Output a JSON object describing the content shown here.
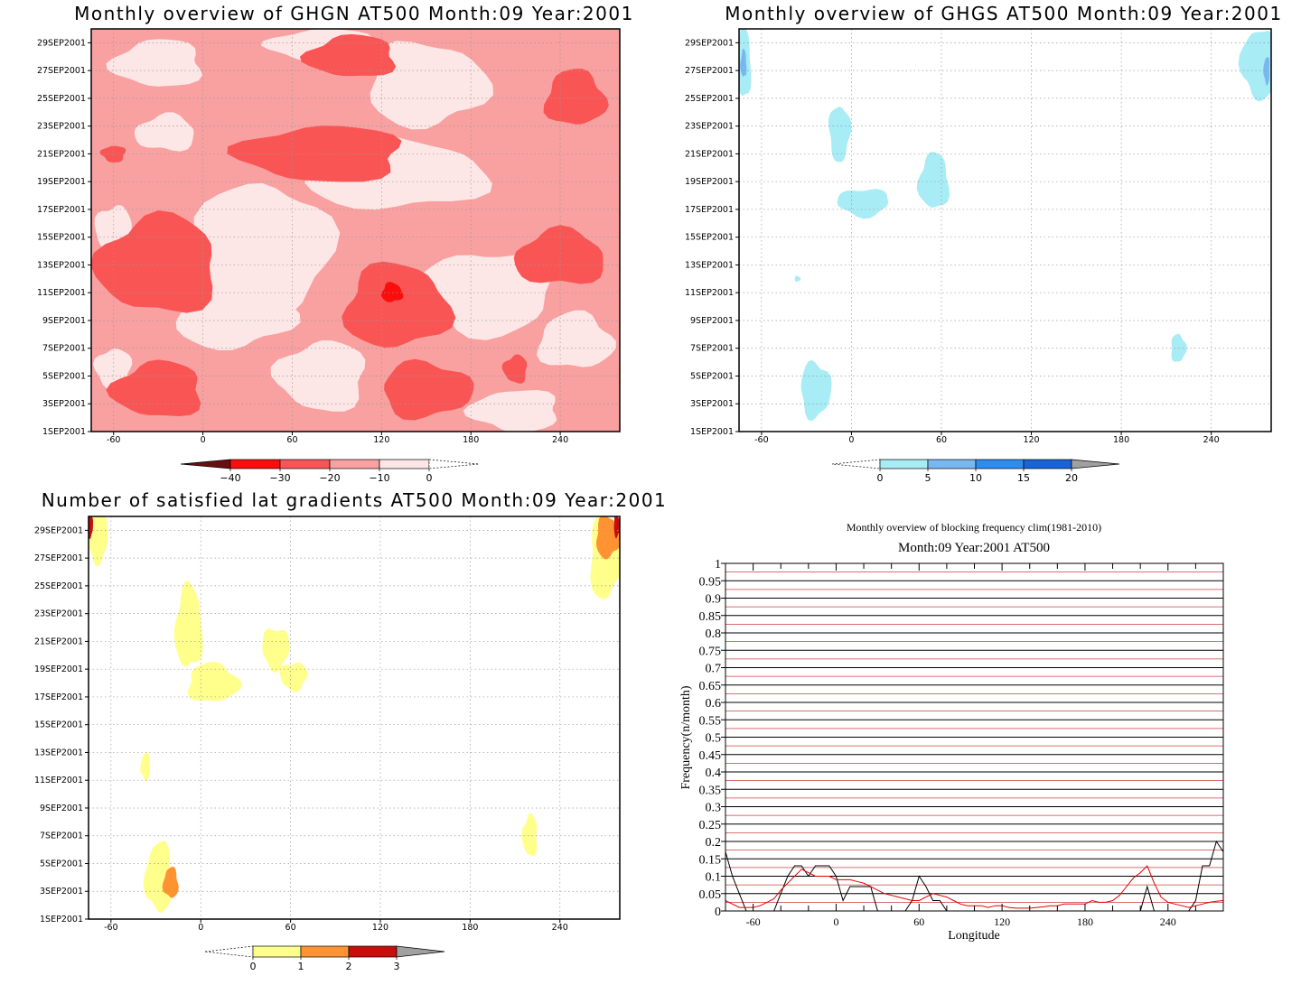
{
  "chart_data": [
    {
      "id": "ghgn",
      "type": "heatmap",
      "title": "Monthly overview of GHGN AT500 Month:09 Year:2001",
      "x_ticks": [
        -60,
        0,
        60,
        120,
        180,
        240
      ],
      "x_range": [
        -75,
        280
      ],
      "y_ticks": [
        "1SEP2001",
        "3SEP2001",
        "5SEP2001",
        "7SEP2001",
        "9SEP2001",
        "11SEP2001",
        "13SEP2001",
        "15SEP2001",
        "17SEP2001",
        "19SEP2001",
        "21SEP2001",
        "23SEP2001",
        "25SEP2001",
        "27SEP2001",
        "29SEP2001"
      ],
      "y_range": [
        1,
        30
      ],
      "background_level": "-20 to -10",
      "background_color": "#f9a0a0",
      "colorbar": {
        "labels": [
          "-40",
          "-30",
          "-20",
          "-10",
          "0"
        ],
        "colors": [
          "#fc0d0d",
          "#f95555",
          "#f9a0a0",
          "#fde6e6"
        ],
        "low_extend_color": "#6a0f0f",
        "high_extend_color": "#ffffff"
      },
      "regions": [
        {
          "level": "0 to -10",
          "color": "#fde6e6",
          "center": [
            -30,
            27.5
          ],
          "radius": [
            30,
            1.7
          ]
        },
        {
          "level": "0 to -10",
          "color": "#fde6e6",
          "center": [
            80,
            28.8
          ],
          "radius": [
            35,
            1.2
          ]
        },
        {
          "level": "0 to -10",
          "color": "#fde6e6",
          "center": [
            150,
            26
          ],
          "radius": [
            40,
            3
          ]
        },
        {
          "level": "0 to -10",
          "color": "#fde6e6",
          "center": [
            -25,
            22.5
          ],
          "radius": [
            20,
            1.3
          ]
        },
        {
          "level": "0 to -10",
          "color": "#fde6e6",
          "center": [
            130,
            19.5
          ],
          "radius": [
            60,
            2.5
          ]
        },
        {
          "level": "0 to -10",
          "color": "#fde6e6",
          "center": [
            40,
            14
          ],
          "radius": [
            45,
            5
          ]
        },
        {
          "level": "0 to -10",
          "color": "#fde6e6",
          "center": [
            -60,
            15.5
          ],
          "radius": [
            12,
            1.8
          ]
        },
        {
          "level": "0 to -10",
          "color": "#fde6e6",
          "center": [
            20,
            9.5
          ],
          "radius": [
            40,
            2.5
          ]
        },
        {
          "level": "0 to -10",
          "color": "#fde6e6",
          "center": [
            190,
            11
          ],
          "radius": [
            45,
            3
          ]
        },
        {
          "level": "0 to -10",
          "color": "#fde6e6",
          "center": [
            250,
            7.5
          ],
          "radius": [
            25,
            2
          ]
        },
        {
          "level": "0 to -10",
          "color": "#fde6e6",
          "center": [
            80,
            5
          ],
          "radius": [
            30,
            2.5
          ]
        },
        {
          "level": "0 to -10",
          "color": "#fde6e6",
          "center": [
            -60,
            5.5
          ],
          "radius": [
            12,
            1.5
          ]
        },
        {
          "level": "0 to -10",
          "color": "#fde6e6",
          "center": [
            210,
            2.5
          ],
          "radius": [
            30,
            1.5
          ]
        },
        {
          "level": "-20 to -30",
          "color": "#f95555",
          "center": [
            100,
            28
          ],
          "radius": [
            30,
            1.5
          ]
        },
        {
          "level": "-20 to -30",
          "color": "#f95555",
          "center": [
            250,
            25
          ],
          "radius": [
            20,
            2
          ]
        },
        {
          "level": "-20 to -30",
          "color": "#f95555",
          "center": [
            80,
            21
          ],
          "radius": [
            55,
            2
          ]
        },
        {
          "level": "-20 to -30",
          "color": "#f95555",
          "center": [
            -60,
            21
          ],
          "radius": [
            8,
            0.6
          ]
        },
        {
          "level": "-20 to -30",
          "color": "#f95555",
          "center": [
            -30,
            13
          ],
          "radius": [
            40,
            3.5
          ]
        },
        {
          "level": "-20 to -30",
          "color": "#f95555",
          "center": [
            130,
            10
          ],
          "radius": [
            35,
            3
          ]
        },
        {
          "level": "-20 to -30",
          "color": "#f95555",
          "center": [
            240,
            13.5
          ],
          "radius": [
            30,
            2
          ]
        },
        {
          "level": "-20 to -30",
          "color": "#f95555",
          "center": [
            -30,
            4
          ],
          "radius": [
            30,
            2
          ]
        },
        {
          "level": "-20 to -30",
          "color": "#f95555",
          "center": [
            150,
            4
          ],
          "radius": [
            30,
            2
          ]
        },
        {
          "level": "-20 to -30",
          "color": "#f95555",
          "center": [
            210,
            5.5
          ],
          "radius": [
            8,
            1
          ]
        },
        {
          "level": "-30 to -40",
          "color": "#fc0d0d",
          "center": [
            127,
            11
          ],
          "radius": [
            7,
            0.7
          ]
        }
      ]
    },
    {
      "id": "ghgs",
      "type": "heatmap",
      "title": "Monthly overview of GHGS AT500 Month:09 Year:2001",
      "x_ticks": [
        -60,
        0,
        60,
        120,
        180,
        240
      ],
      "x_range": [
        -75,
        280
      ],
      "y_ticks": [
        "1SEP2001",
        "3SEP2001",
        "5SEP2001",
        "7SEP2001",
        "9SEP2001",
        "11SEP2001",
        "13SEP2001",
        "15SEP2001",
        "17SEP2001",
        "19SEP2001",
        "21SEP2001",
        "23SEP2001",
        "25SEP2001",
        "27SEP2001",
        "29SEP2001"
      ],
      "y_range": [
        1,
        30
      ],
      "colorbar": {
        "labels": [
          "0",
          "5",
          "10",
          "15",
          "20"
        ],
        "colors": [
          "#a8ecf5",
          "#78b8f0",
          "#2d8cf0",
          "#1664d8"
        ],
        "low_extend_color": "#ffffff",
        "high_extend_color": "#a0a0a0"
      },
      "regions": [
        {
          "level": "0 to 5",
          "color": "#a8ecf5",
          "center": [
            -72,
            27.5
          ],
          "radius": [
            5,
            2.5
          ]
        },
        {
          "level": "5 to 10",
          "color": "#78b8f0",
          "center": [
            -72,
            27.5
          ],
          "radius": [
            2,
            1
          ]
        },
        {
          "level": "0 to 5",
          "color": "#a8ecf5",
          "center": [
            272,
            27.5
          ],
          "radius": [
            12,
            2.5
          ]
        },
        {
          "level": "5 to 10",
          "color": "#78b8f0",
          "center": [
            277,
            27
          ],
          "radius": [
            2,
            1
          ]
        },
        {
          "level": "0 to 5",
          "color": "#a8ecf5",
          "center": [
            -8,
            22.5
          ],
          "radius": [
            7,
            2
          ]
        },
        {
          "level": "0 to 5",
          "color": "#a8ecf5",
          "center": [
            8,
            17.5
          ],
          "radius": [
            17,
            1
          ]
        },
        {
          "level": "0 to 5",
          "color": "#a8ecf5",
          "center": [
            55,
            19
          ],
          "radius": [
            10,
            2
          ]
        },
        {
          "level": "0 to 5",
          "color": "#a8ecf5",
          "center": [
            -36,
            12
          ],
          "radius": [
            2,
            0.2
          ]
        },
        {
          "level": "0 to 5",
          "color": "#a8ecf5",
          "center": [
            -24,
            4
          ],
          "radius": [
            10,
            2
          ]
        },
        {
          "level": "0 to 5",
          "color": "#a8ecf5",
          "center": [
            218,
            7
          ],
          "radius": [
            5,
            1
          ]
        }
      ]
    },
    {
      "id": "grad",
      "type": "heatmap",
      "title": "Number of satisfied lat gradients AT500 Month:09 Year:2001",
      "x_ticks": [
        -60,
        0,
        60,
        120,
        180,
        240
      ],
      "x_range": [
        -75,
        280
      ],
      "y_ticks": [
        "1SEP2001",
        "3SEP2001",
        "5SEP2001",
        "7SEP2001",
        "9SEP2001",
        "11SEP2001",
        "13SEP2001",
        "15SEP2001",
        "17SEP2001",
        "19SEP2001",
        "21SEP2001",
        "23SEP2001",
        "25SEP2001",
        "27SEP2001",
        "29SEP2001"
      ],
      "y_range": [
        1,
        30
      ],
      "colorbar": {
        "labels": [
          "0",
          "1",
          "2",
          "3"
        ],
        "colors": [
          "#ffff8c",
          "#ff9332",
          "#c80d0d"
        ],
        "low_extend_color": "#ffffff",
        "high_extend_color": "#a0a0a0"
      },
      "regions": [
        {
          "level": "0 to 1",
          "color": "#ffff8c",
          "center": [
            -69,
            28.5
          ],
          "radius": [
            7,
            1.8
          ]
        },
        {
          "level": "2 to 3",
          "color": "#c80d0d",
          "center": [
            -74,
            29.3
          ],
          "radius": [
            2,
            0.8
          ]
        },
        {
          "level": "0 to 1",
          "color": "#ffff8c",
          "center": [
            270,
            27
          ],
          "radius": [
            10,
            3
          ]
        },
        {
          "level": "1 to 2",
          "color": "#ff9332",
          "center": [
            272,
            28.5
          ],
          "radius": [
            8,
            1.5
          ]
        },
        {
          "level": "2 to 3",
          "color": "#c80d0d",
          "center": [
            278,
            29.3
          ],
          "radius": [
            2,
            0.8
          ]
        },
        {
          "level": "0 to 1",
          "color": "#ffff8c",
          "center": [
            -8,
            22
          ],
          "radius": [
            9,
            3
          ]
        },
        {
          "level": "0 to 1",
          "color": "#ffff8c",
          "center": [
            8,
            18
          ],
          "radius": [
            17,
            1.4
          ]
        },
        {
          "level": "0 to 1",
          "color": "#ffff8c",
          "center": [
            50,
            20.5
          ],
          "radius": [
            9,
            1.5
          ]
        },
        {
          "level": "0 to 1",
          "color": "#ffff8c",
          "center": [
            62,
            18.5
          ],
          "radius": [
            9,
            1
          ]
        },
        {
          "level": "0 to 1",
          "color": "#ffff8c",
          "center": [
            -37,
            12
          ],
          "radius": [
            3,
            1
          ]
        },
        {
          "level": "0 to 1",
          "color": "#ffff8c",
          "center": [
            -28,
            4
          ],
          "radius": [
            9,
            2.5
          ]
        },
        {
          "level": "1 to 2",
          "color": "#ff9332",
          "center": [
            -20,
            3.6
          ],
          "radius": [
            5,
            1.1
          ]
        },
        {
          "level": "0 to 1",
          "color": "#ffff8c",
          "center": [
            220,
            7
          ],
          "radius": [
            5,
            1.5
          ]
        }
      ]
    },
    {
      "id": "freq",
      "type": "line",
      "title": "Monthly overview of blocking frequency clim(1981-2010)",
      "subtitle": "Month:09 Year:2001  AT500",
      "xlabel": "Longitude",
      "ylabel": "Frequency(n/month)",
      "x_ticks": [
        -60,
        0,
        60,
        120,
        180,
        240
      ],
      "xlim": [
        -80,
        280
      ],
      "ylim": [
        0,
        1
      ],
      "y_ticks": [
        "0",
        "0.05",
        "0.1",
        "0.15",
        "0.2",
        "0.25",
        "0.3",
        "0.35",
        "0.4",
        "0.45",
        "0.5",
        "0.55",
        "0.6",
        "0.65",
        "0.7",
        "0.75",
        "0.8",
        "0.85",
        "0.9",
        "0.95",
        "1"
      ],
      "grid": true,
      "series": [
        {
          "color": "#000000",
          "x": [
            -80,
            -75,
            -70,
            -65,
            -60,
            -55,
            -50,
            -45,
            -40,
            -35,
            -30,
            -25,
            -20,
            -15,
            -10,
            -5,
            0,
            5,
            10,
            15,
            20,
            25,
            30,
            35,
            40,
            45,
            50,
            55,
            60,
            65,
            70,
            75,
            80,
            85,
            90,
            95,
            100,
            105,
            110,
            115,
            120,
            125,
            130,
            135,
            140,
            145,
            150,
            155,
            160,
            165,
            170,
            175,
            180,
            185,
            190,
            195,
            200,
            205,
            210,
            215,
            220,
            225,
            230,
            235,
            240,
            245,
            250,
            255,
            260,
            265,
            270,
            275,
            280
          ],
          "y": [
            0.17,
            0.1,
            0.05,
            0,
            0,
            0,
            0,
            0,
            0.05,
            0.1,
            0.13,
            0.13,
            0.1,
            0.13,
            0.13,
            0.13,
            0.1,
            0.03,
            0.07,
            0.07,
            0.07,
            0.07,
            0,
            0,
            0,
            0,
            0,
            0.03,
            0.1,
            0.07,
            0.03,
            0.03,
            0,
            0,
            0,
            0,
            0,
            0,
            0,
            0,
            0,
            0,
            0,
            0,
            0,
            0,
            0,
            0,
            0,
            0,
            0,
            0,
            0,
            0,
            0,
            0,
            0,
            0,
            0,
            0,
            0,
            0.07,
            0,
            0,
            0,
            0,
            0,
            0,
            0.03,
            0.13,
            0.13,
            0.2,
            0.17
          ]
        },
        {
          "color": "#e00000",
          "x": [
            -80,
            -75,
            -70,
            -65,
            -60,
            -55,
            -50,
            -45,
            -40,
            -35,
            -30,
            -25,
            -20,
            -15,
            -10,
            -5,
            0,
            5,
            10,
            15,
            20,
            25,
            30,
            35,
            40,
            45,
            50,
            55,
            60,
            65,
            70,
            75,
            80,
            85,
            90,
            95,
            100,
            105,
            110,
            115,
            120,
            125,
            130,
            135,
            140,
            145,
            150,
            155,
            160,
            165,
            170,
            175,
            180,
            185,
            190,
            195,
            200,
            205,
            210,
            215,
            220,
            225,
            230,
            235,
            240,
            245,
            250,
            255,
            260,
            265,
            270,
            275,
            280
          ],
          "y": [
            0.03,
            0.02,
            0.01,
            0.01,
            0.01,
            0.015,
            0.025,
            0.035,
            0.06,
            0.08,
            0.1,
            0.12,
            0.11,
            0.1,
            0.1,
            0.1,
            0.09,
            0.09,
            0.09,
            0.085,
            0.08,
            0.07,
            0.06,
            0.05,
            0.045,
            0.04,
            0.035,
            0.03,
            0.03,
            0.04,
            0.05,
            0.045,
            0.04,
            0.03,
            0.02,
            0.015,
            0.015,
            0.015,
            0.01,
            0.015,
            0.015,
            0.01,
            0.008,
            0.008,
            0.008,
            0.01,
            0.012,
            0.015,
            0.015,
            0.02,
            0.02,
            0.02,
            0.02,
            0.03,
            0.025,
            0.025,
            0.03,
            0.045,
            0.07,
            0.095,
            0.11,
            0.13,
            0.08,
            0.04,
            0.025,
            0.02,
            0.015,
            0.01,
            0.015,
            0.02,
            0.025,
            0.028,
            0.03
          ]
        }
      ]
    }
  ]
}
